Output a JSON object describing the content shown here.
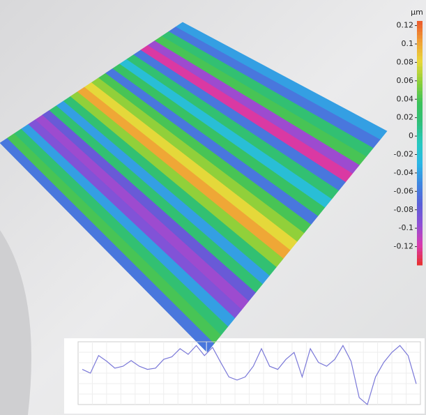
{
  "chart_data": {
    "type": "surface",
    "unit": "µm",
    "zlim": [
      -0.14,
      0.125
    ],
    "zticks": [
      0.12,
      0.1,
      0.08,
      0.06,
      0.04,
      0.02,
      0,
      -0.02,
      -0.04,
      -0.06,
      -0.08,
      -0.1,
      -0.12
    ],
    "colormap": [
      "#e8302a",
      "#d93ab0",
      "#8f4fd6",
      "#5a5fd8",
      "#3f86e0",
      "#2ab6e6",
      "#27c9c0",
      "#2fbf7a",
      "#3cc25a",
      "#8ccf3a",
      "#e8d83a",
      "#f0a035",
      "#ec5a2c"
    ],
    "values": [
      -0.04,
      -0.06,
      0.02,
      0.04,
      -0.1,
      -0.12,
      -0.06,
      0.02,
      -0.02,
      0.03,
      -0.06,
      0.04,
      0.06,
      0.08,
      0.1,
      0.06,
      0.02,
      -0.04,
      0.02,
      -0.08,
      -0.1,
      -0.09,
      -0.04,
      0.02,
      0.04,
      -0.06
    ],
    "profile": {
      "color": "#7a78d8",
      "ylim": [
        0,
        10
      ],
      "values": [
        5.6,
        5.0,
        7.8,
        6.9,
        5.8,
        6.1,
        7.0,
        6.1,
        5.6,
        5.8,
        7.2,
        7.6,
        8.9,
        8.0,
        9.4,
        7.8,
        9.1,
        6.7,
        4.4,
        3.9,
        4.4,
        6.1,
        8.9,
        6.1,
        5.6,
        7.2,
        8.3,
        4.4,
        8.9,
        6.7,
        6.1,
        7.2,
        9.4,
        6.9,
        1.1,
        0.0,
        4.4,
        6.7,
        8.3,
        9.4,
        7.8,
        3.3
      ]
    }
  }
}
